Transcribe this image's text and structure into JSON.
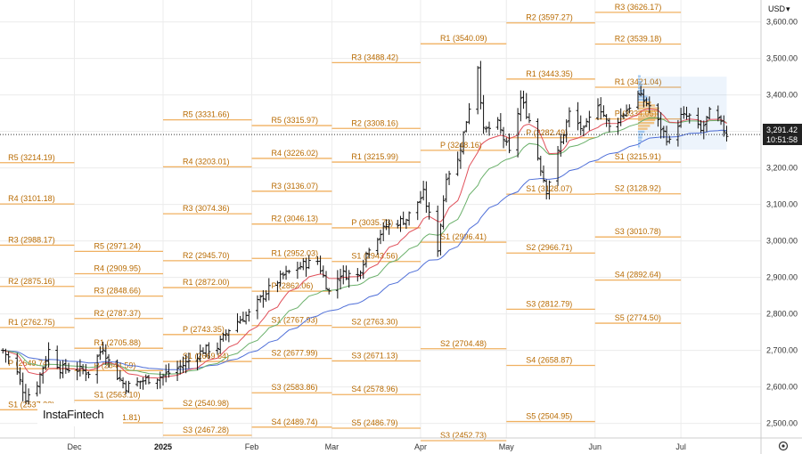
{
  "currency": "USD",
  "logo": "InstaFintech",
  "current_price": "3,291.42",
  "countdown": "10:51:58",
  "colors": {
    "pivot": "#f0b060",
    "pivot_text": "#b86a00",
    "candle": "#111111",
    "ma_fast": "#e0505a",
    "ma_mid": "#6ab06a",
    "ma_slow": "#4f6fd8",
    "price_tag": "#222222",
    "volume_profile": "#6aa8e8",
    "volume_poc": "#f0a030"
  },
  "chart_data": {
    "type": "candlestick",
    "ylim": [
      2460,
      3660
    ],
    "xlim": [
      "2024-11-05",
      "2025-07-29"
    ],
    "y_ticks": [
      "2,500.00",
      "2,600.00",
      "2,700.00",
      "2,800.00",
      "2,900.00",
      "3,000.00",
      "3,100.00",
      "3,200.00",
      "3,300.00",
      "3,400.00",
      "3,500.00",
      "3,600.00"
    ],
    "y_tick_values": [
      2500,
      2600,
      2700,
      2800,
      2900,
      3000,
      3100,
      3200,
      3300,
      3400,
      3500,
      3600
    ],
    "x_ticks": [
      {
        "label": "Dec",
        "date": "2024-12-01",
        "bold": false
      },
      {
        "label": "2025",
        "date": "2025-01-01",
        "bold": true
      },
      {
        "label": "Feb",
        "date": "2025-02-01",
        "bold": false
      },
      {
        "label": "Mar",
        "date": "2025-03-01",
        "bold": false
      },
      {
        "label": "Apr",
        "date": "2025-04-01",
        "bold": false
      },
      {
        "label": "May",
        "date": "2025-05-01",
        "bold": false
      },
      {
        "label": "Jun",
        "date": "2025-06-01",
        "bold": false
      },
      {
        "label": "Jul",
        "date": "2025-07-01",
        "bold": false
      }
    ],
    "current_price_value": 3291.42,
    "pivot_periods": [
      {
        "start": "2024-11-01",
        "end": "2024-12-01",
        "levels": [
          {
            "label": "R5 (3214.19)",
            "value": 3214.19
          },
          {
            "label": "R4 (3101.18)",
            "value": 3101.18
          },
          {
            "label": "R3 (2988.17)",
            "value": 2988.17
          },
          {
            "label": "R2 (2875.16)",
            "value": 2875.16
          },
          {
            "label": "R1 (2762.75)",
            "value": 2762.75
          },
          {
            "label": "P (2649.74)",
            "value": 2649.74
          },
          {
            "label": "S1 (2537.33)",
            "value": 2537.33
          }
        ]
      },
      {
        "start": "2024-12-01",
        "end": "2025-01-01",
        "levels": [
          {
            "label": "R5 (2971.24)",
            "value": 2971.24
          },
          {
            "label": "R4 (2909.95)",
            "value": 2909.95
          },
          {
            "label": "R3 (2848.66)",
            "value": 2848.66
          },
          {
            "label": "R2 (2787.37)",
            "value": 2787.37
          },
          {
            "label": "R1 (2705.88)",
            "value": 2705.88
          },
          {
            "label": "P (2644.59)",
            "value": 2644.59
          },
          {
            "label": "S1 (2563.10)",
            "value": 2563.1
          },
          {
            "label": "S2 (2501.81)",
            "value": 2501.81
          }
        ]
      },
      {
        "start": "2025-01-01",
        "end": "2025-02-01",
        "levels": [
          {
            "label": "R5 (3331.66)",
            "value": 3331.66
          },
          {
            "label": "R4 (3203.01)",
            "value": 3203.01
          },
          {
            "label": "R3 (3074.36)",
            "value": 3074.36
          },
          {
            "label": "R2 (2945.70)",
            "value": 2945.7
          },
          {
            "label": "R1 (2872.00)",
            "value": 2872.0
          },
          {
            "label": "P (2743.35)",
            "value": 2743.35
          },
          {
            "label": "S1 (2669.64)",
            "value": 2669.64
          },
          {
            "label": "S2 (2540.98)",
            "value": 2540.98
          },
          {
            "label": "S3 (2467.28)",
            "value": 2467.28
          }
        ]
      },
      {
        "start": "2025-02-01",
        "end": "2025-03-01",
        "levels": [
          {
            "label": "R5 (3315.97)",
            "value": 3315.97
          },
          {
            "label": "R4 (3226.02)",
            "value": 3226.02
          },
          {
            "label": "R3 (3136.07)",
            "value": 3136.07
          },
          {
            "label": "R2 (3046.13)",
            "value": 3046.13
          },
          {
            "label": "R1 (2952.03)",
            "value": 2952.03
          },
          {
            "label": "P (2862.06)",
            "value": 2862.06
          },
          {
            "label": "S1 (2767.93)",
            "value": 2767.93
          },
          {
            "label": "S2 (2677.99)",
            "value": 2677.99
          },
          {
            "label": "S3 (2583.86)",
            "value": 2583.86
          },
          {
            "label": "S4 (2489.74)",
            "value": 2489.74
          }
        ]
      },
      {
        "start": "2025-03-01",
        "end": "2025-04-01",
        "levels": [
          {
            "label": "R3 (3488.42)",
            "value": 3488.42
          },
          {
            "label": "R2 (3308.16)",
            "value": 3308.16
          },
          {
            "label": "R1 (3215.99)",
            "value": 3215.99
          },
          {
            "label": "P (3035.73)",
            "value": 3035.73
          },
          {
            "label": "S1 (2943.56)",
            "value": 2943.56
          },
          {
            "label": "S2 (2763.30)",
            "value": 2763.3
          },
          {
            "label": "S3 (2671.13)",
            "value": 2671.13
          },
          {
            "label": "S4 (2578.96)",
            "value": 2578.96
          },
          {
            "label": "S5 (2486.79)",
            "value": 2486.79
          }
        ]
      },
      {
        "start": "2025-04-01",
        "end": "2025-05-01",
        "levels": [
          {
            "label": "R1 (3540.09)",
            "value": 3540.09
          },
          {
            "label": "P (3248.16)",
            "value": 3248.16
          },
          {
            "label": "S1 (2996.41)",
            "value": 2996.41
          },
          {
            "label": "S2 (2704.48)",
            "value": 2704.48
          },
          {
            "label": "S3 (2452.73)",
            "value": 2452.73
          }
        ]
      },
      {
        "start": "2025-05-01",
        "end": "2025-06-01",
        "levels": [
          {
            "label": "R2 (3597.27)",
            "value": 3597.27
          },
          {
            "label": "R1 (3443.35)",
            "value": 3443.35
          },
          {
            "label": "P (3282.49)",
            "value": 3282.49
          },
          {
            "label": "S1 (3128.07)",
            "value": 3128.07
          },
          {
            "label": "S2 (2966.71)",
            "value": 2966.71
          },
          {
            "label": "S3 (2812.79)",
            "value": 2812.79
          },
          {
            "label": "S4 (2658.87)",
            "value": 2658.87
          },
          {
            "label": "S5 (2504.95)",
            "value": 2504.95
          }
        ]
      },
      {
        "start": "2025-06-01",
        "end": "2025-07-01",
        "levels": [
          {
            "label": "R3 (3626.17)",
            "value": 3626.17
          },
          {
            "label": "R2 (3539.18)",
            "value": 3539.18
          },
          {
            "label": "R1 (3421.04)",
            "value": 3421.04
          },
          {
            "label": "P (3334.05)",
            "value": 3334.05
          },
          {
            "label": "S1 (3215.91)",
            "value": 3215.91
          },
          {
            "label": "S2 (3128.92)",
            "value": 3128.92
          },
          {
            "label": "S3 (3010.78)",
            "value": 3010.78
          },
          {
            "label": "S4 (2892.64)",
            "value": 2892.64
          },
          {
            "label": "S5 (2774.50)",
            "value": 2774.5
          }
        ]
      }
    ],
    "close_anchors": [
      [
        "2024-11-06",
        2700
      ],
      [
        "2024-11-10",
        2660
      ],
      [
        "2024-11-14",
        2570
      ],
      [
        "2024-11-18",
        2610
      ],
      [
        "2024-11-22",
        2700
      ],
      [
        "2024-11-26",
        2650
      ],
      [
        "2024-12-01",
        2650
      ],
      [
        "2024-12-06",
        2640
      ],
      [
        "2024-12-11",
        2710
      ],
      [
        "2024-12-14",
        2650
      ],
      [
        "2024-12-19",
        2600
      ],
      [
        "2024-12-26",
        2620
      ],
      [
        "2025-01-01",
        2630
      ],
      [
        "2025-01-08",
        2660
      ],
      [
        "2025-01-15",
        2700
      ],
      [
        "2025-01-20",
        2710
      ],
      [
        "2025-01-25",
        2770
      ],
      [
        "2025-01-31",
        2800
      ],
      [
        "2025-02-06",
        2860
      ],
      [
        "2025-02-12",
        2905
      ],
      [
        "2025-02-19",
        2935
      ],
      [
        "2025-02-24",
        2945
      ],
      [
        "2025-02-28",
        2860
      ],
      [
        "2025-03-04",
        2910
      ],
      [
        "2025-03-10",
        2905
      ],
      [
        "2025-03-14",
        2985
      ],
      [
        "2025-03-20",
        3040
      ],
      [
        "2025-03-27",
        3060
      ],
      [
        "2025-04-02",
        3130
      ],
      [
        "2025-04-07",
        2980
      ],
      [
        "2025-04-10",
        3180
      ],
      [
        "2025-04-14",
        3220
      ],
      [
        "2025-04-17",
        3330
      ],
      [
        "2025-04-21",
        3480
      ],
      [
        "2025-04-23",
        3300
      ],
      [
        "2025-04-28",
        3320
      ],
      [
        "2025-05-02",
        3240
      ],
      [
        "2025-05-06",
        3390
      ],
      [
        "2025-05-09",
        3330
      ],
      [
        "2025-05-12",
        3230
      ],
      [
        "2025-05-15",
        3140
      ],
      [
        "2025-05-19",
        3240
      ],
      [
        "2025-05-23",
        3350
      ],
      [
        "2025-05-28",
        3300
      ],
      [
        "2025-06-02",
        3380
      ],
      [
        "2025-06-06",
        3310
      ],
      [
        "2025-06-11",
        3350
      ],
      [
        "2025-06-16",
        3400
      ],
      [
        "2025-06-20",
        3370
      ],
      [
        "2025-06-24",
        3310
      ],
      [
        "2025-06-27",
        3270
      ],
      [
        "2025-07-01",
        3340
      ],
      [
        "2025-07-04",
        3340
      ],
      [
        "2025-07-08",
        3300
      ],
      [
        "2025-07-11",
        3350
      ],
      [
        "2025-07-14",
        3330
      ],
      [
        "2025-07-17",
        3291.42
      ]
    ]
  }
}
